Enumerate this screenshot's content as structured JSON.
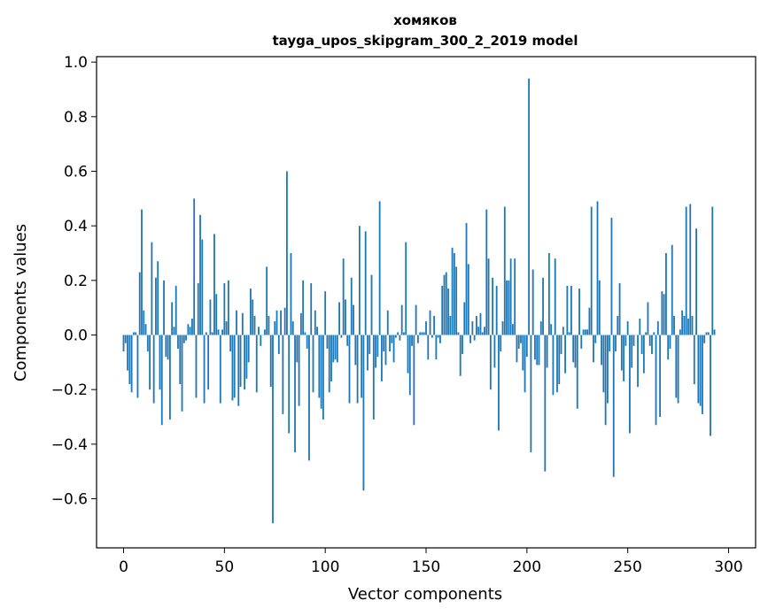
{
  "chart_data": {
    "type": "bar",
    "title": "хомяков",
    "subtitle": "tayga_upos_skipgram_300_2_2019 model",
    "xlabel": "Vector components",
    "ylabel": "Components values",
    "xlim": [
      -13.4,
      313.4
    ],
    "ylim": [
      -0.78,
      1.02
    ],
    "xticks": [
      0,
      50,
      100,
      150,
      200,
      250,
      300
    ],
    "xtick_labels": [
      "0",
      "50",
      "100",
      "150",
      "200",
      "250",
      "300"
    ],
    "yticks": [
      -0.6,
      -0.4,
      -0.2,
      0.0,
      0.2,
      0.4,
      0.6,
      0.8,
      1.0
    ],
    "ytick_labels": [
      "−0.6",
      "−0.4",
      "−0.2",
      "0.0",
      "0.2",
      "0.4",
      "0.6",
      "0.8",
      "1.0"
    ],
    "bar_color": "#1f77b4",
    "grid": false,
    "values": [
      -0.06,
      -0.03,
      -0.13,
      -0.18,
      -0.21,
      0.01,
      0.01,
      -0.23,
      0.23,
      0.46,
      0.09,
      0.04,
      -0.06,
      -0.2,
      0.34,
      -0.25,
      0.21,
      0.27,
      -0.2,
      -0.33,
      0.2,
      -0.08,
      -0.09,
      -0.31,
      0.12,
      0.03,
      0.18,
      -0.05,
      -0.18,
      -0.28,
      -0.03,
      -0.02,
      0.04,
      0.03,
      0.06,
      0.5,
      -0.23,
      0.19,
      0.44,
      0.35,
      -0.25,
      0.01,
      -0.2,
      0.13,
      0.01,
      0.37,
      0.15,
      0.02,
      -0.25,
      0.02,
      0.19,
      0.05,
      0.2,
      -0.06,
      -0.24,
      -0.23,
      0.09,
      -0.26,
      -0.19,
      0.08,
      -0.2,
      -0.16,
      -0.1,
      0.17,
      0.13,
      0.07,
      -0.21,
      0.03,
      -0.04,
      0.0,
      0.02,
      0.25,
      0.07,
      -0.19,
      -0.69,
      0.05,
      0.09,
      -0.07,
      0.09,
      -0.29,
      0.1,
      0.6,
      -0.36,
      0.3,
      0.05,
      -0.43,
      -0.1,
      -0.26,
      0.08,
      0.2,
      0.01,
      -0.05,
      -0.46,
      0.19,
      -0.21,
      0.09,
      0.03,
      -0.23,
      -0.27,
      -0.31,
      0.16,
      -0.05,
      -0.21,
      -0.17,
      -0.1,
      -0.09,
      -0.1,
      0.12,
      -0.01,
      0.28,
      0.13,
      -0.04,
      -0.25,
      0.21,
      0.11,
      -0.11,
      -0.25,
      0.4,
      -0.23,
      -0.57,
      0.38,
      -0.13,
      -0.07,
      0.22,
      -0.31,
      -0.12,
      -0.08,
      0.49,
      -0.17,
      -0.06,
      -0.11,
      0.09,
      -0.06,
      -0.03,
      -0.1,
      -0.01,
      0.01,
      -0.02,
      0.11,
      0.01,
      0.34,
      -0.14,
      -0.22,
      -0.04,
      -0.33,
      0.11,
      -0.03,
      0.01,
      0.01,
      0.01,
      0.05,
      -0.09,
      0.09,
      -0.01,
      0.07,
      -0.09,
      -0.01,
      -0.03,
      0.18,
      0.22,
      0.23,
      0.17,
      0.07,
      0.32,
      0.3,
      0.25,
      0.01,
      -0.15,
      -0.07,
      0.12,
      0.41,
      0.26,
      -0.03,
      0.05,
      -0.02,
      0.07,
      0.03,
      0.08,
      0.01,
      0.03,
      0.46,
      0.28,
      -0.2,
      0.21,
      -0.12,
      0.18,
      -0.35,
      -0.06,
      0.05,
      0.47,
      0.2,
      0.2,
      0.28,
      0.04,
      0.28,
      -0.1,
      -0.05,
      -0.03,
      -0.13,
      -0.21,
      -0.08,
      0.94,
      -0.43,
      0.24,
      -0.09,
      -0.11,
      -0.11,
      0.05,
      0.21,
      -0.5,
      -0.12,
      0.3,
      0.04,
      -0.22,
      0.28,
      -0.21,
      -0.18,
      -0.07,
      0.03,
      -0.14,
      0.18,
      0.01,
      0.18,
      -0.1,
      -0.12,
      -0.27,
      0.17,
      -0.05,
      0.02,
      0.02,
      0.02,
      0.1,
      0.47,
      -0.1,
      -0.03,
      0.49,
      0.2,
      -0.11,
      -0.21,
      -0.33,
      -0.25,
      -0.06,
      0.43,
      -0.52,
      -0.06,
      0.07,
      0.19,
      -0.13,
      -0.17,
      -0.04,
      0.05,
      -0.36,
      -0.12,
      -0.04,
      0.0,
      -0.19,
      0.06,
      -0.07,
      -0.14,
      0.01,
      0.12,
      -0.04,
      -0.07,
      0.01,
      -0.33,
      0.05,
      -0.3,
      0.16,
      0.15,
      0.3,
      -0.09,
      -0.05,
      0.33,
      0.07,
      -0.23,
      -0.25,
      0.02,
      0.09,
      0.07,
      0.47,
      0.06,
      0.48,
      0.07,
      -0.18,
      0.39,
      -0.25,
      -0.26,
      -0.29,
      -0.03,
      0.01,
      0.01,
      -0.37,
      0.47,
      0.02
    ]
  }
}
